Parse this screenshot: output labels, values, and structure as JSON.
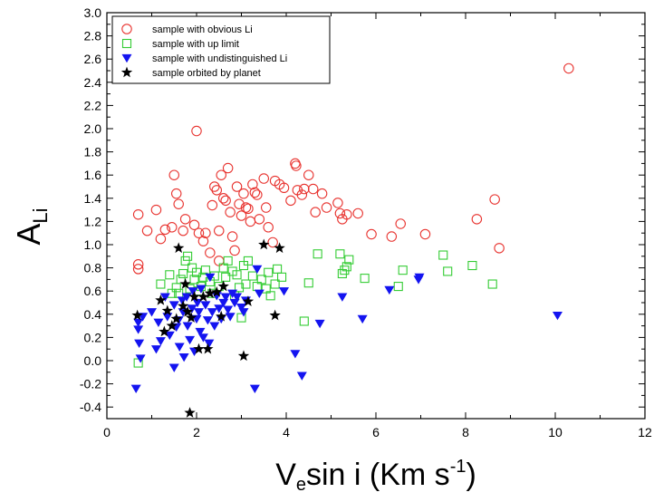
{
  "chart_data": {
    "type": "scatter",
    "xlim": [
      0,
      12
    ],
    "ylim": [
      -0.5,
      3.0
    ],
    "x_ticks": [
      0,
      2,
      4,
      6,
      8,
      10,
      12
    ],
    "y_ticks": [
      -0.4,
      -0.2,
      0.0,
      0.2,
      0.4,
      0.6,
      0.8,
      1.0,
      1.2,
      1.4,
      1.6,
      1.8,
      2.0,
      2.2,
      2.4,
      2.6,
      2.8,
      3.0
    ],
    "xlabel": {
      "main": "V",
      "sub": "e",
      "rest": "sin i (Km s",
      "sup": "-1",
      "end": ")"
    },
    "ylabel": {
      "main": "A",
      "sub": "Li"
    },
    "grid": false,
    "legend_position": "top-left",
    "series": [
      {
        "name": "sample with obvious Li",
        "marker": "circle-open",
        "color": "#e8332f",
        "points": [
          [
            0.7,
            1.26
          ],
          [
            0.7,
            0.83
          ],
          [
            0.7,
            0.79
          ],
          [
            0.9,
            1.12
          ],
          [
            1.1,
            1.3
          ],
          [
            1.2,
            1.05
          ],
          [
            1.3,
            1.13
          ],
          [
            1.45,
            1.15
          ],
          [
            1.5,
            1.6
          ],
          [
            1.55,
            1.44
          ],
          [
            1.6,
            1.35
          ],
          [
            1.7,
            1.12
          ],
          [
            1.75,
            1.22
          ],
          [
            1.95,
            1.17
          ],
          [
            2.0,
            1.98
          ],
          [
            2.05,
            1.1
          ],
          [
            2.15,
            1.03
          ],
          [
            2.2,
            1.1
          ],
          [
            2.3,
            0.93
          ],
          [
            2.35,
            1.34
          ],
          [
            2.4,
            1.5
          ],
          [
            2.45,
            1.47
          ],
          [
            2.5,
            1.12
          ],
          [
            2.5,
            0.86
          ],
          [
            2.55,
            1.6
          ],
          [
            2.6,
            1.4
          ],
          [
            2.65,
            1.38
          ],
          [
            2.7,
            1.66
          ],
          [
            2.75,
            1.28
          ],
          [
            2.8,
            1.07
          ],
          [
            2.85,
            0.95
          ],
          [
            2.9,
            1.5
          ],
          [
            2.95,
            1.35
          ],
          [
            3.0,
            1.25
          ],
          [
            3.05,
            1.44
          ],
          [
            3.1,
            1.32
          ],
          [
            3.15,
            1.31
          ],
          [
            3.2,
            1.2
          ],
          [
            3.25,
            1.52
          ],
          [
            3.3,
            1.45
          ],
          [
            3.35,
            1.43
          ],
          [
            3.4,
            1.22
          ],
          [
            3.5,
            1.57
          ],
          [
            3.55,
            1.32
          ],
          [
            3.6,
            1.15
          ],
          [
            3.7,
            1.02
          ],
          [
            3.75,
            1.55
          ],
          [
            3.85,
            1.52
          ],
          [
            3.95,
            1.49
          ],
          [
            4.1,
            1.38
          ],
          [
            4.2,
            1.7
          ],
          [
            4.22,
            1.68
          ],
          [
            4.25,
            1.47
          ],
          [
            4.35,
            1.43
          ],
          [
            4.4,
            1.48
          ],
          [
            4.5,
            1.6
          ],
          [
            4.6,
            1.48
          ],
          [
            4.65,
            1.28
          ],
          [
            4.8,
            1.44
          ],
          [
            4.9,
            1.32
          ],
          [
            5.15,
            1.36
          ],
          [
            5.2,
            1.27
          ],
          [
            5.25,
            1.22
          ],
          [
            5.35,
            1.26
          ],
          [
            5.6,
            1.27
          ],
          [
            5.9,
            1.09
          ],
          [
            6.35,
            1.07
          ],
          [
            6.55,
            1.18
          ],
          [
            7.1,
            1.09
          ],
          [
            8.25,
            1.22
          ],
          [
            8.65,
            1.39
          ],
          [
            8.75,
            0.97
          ],
          [
            10.3,
            2.52
          ]
        ]
      },
      {
        "name": "sample with up limit",
        "marker": "square-open",
        "color": "#33cc33",
        "points": [
          [
            0.7,
            -0.02
          ],
          [
            1.2,
            0.66
          ],
          [
            1.4,
            0.74
          ],
          [
            1.45,
            0.58
          ],
          [
            1.55,
            0.63
          ],
          [
            1.6,
            0.58
          ],
          [
            1.65,
            0.7
          ],
          [
            1.7,
            0.75
          ],
          [
            1.75,
            0.86
          ],
          [
            1.8,
            0.9
          ],
          [
            1.85,
            0.62
          ],
          [
            1.9,
            0.8
          ],
          [
            1.95,
            0.7
          ],
          [
            2.0,
            0.76
          ],
          [
            2.05,
            0.6
          ],
          [
            2.1,
            0.64
          ],
          [
            2.15,
            0.72
          ],
          [
            2.2,
            0.78
          ],
          [
            2.3,
            0.68
          ],
          [
            2.35,
            0.58
          ],
          [
            2.4,
            0.73
          ],
          [
            2.5,
            0.64
          ],
          [
            2.6,
            0.8
          ],
          [
            2.65,
            0.72
          ],
          [
            2.7,
            0.86
          ],
          [
            2.8,
            0.77
          ],
          [
            2.85,
            0.56
          ],
          [
            2.9,
            0.74
          ],
          [
            2.95,
            0.63
          ],
          [
            3.0,
            0.37
          ],
          [
            3.05,
            0.82
          ],
          [
            3.1,
            0.66
          ],
          [
            3.15,
            0.86
          ],
          [
            3.25,
            0.73
          ],
          [
            3.35,
            0.64
          ],
          [
            3.45,
            0.7
          ],
          [
            3.55,
            0.62
          ],
          [
            3.6,
            0.76
          ],
          [
            3.65,
            0.56
          ],
          [
            3.75,
            0.66
          ],
          [
            3.8,
            0.79
          ],
          [
            3.9,
            0.72
          ],
          [
            4.4,
            0.34
          ],
          [
            4.5,
            0.67
          ],
          [
            4.7,
            0.92
          ],
          [
            5.2,
            0.92
          ],
          [
            5.25,
            0.75
          ],
          [
            5.3,
            0.78
          ],
          [
            5.35,
            0.81
          ],
          [
            5.4,
            0.87
          ],
          [
            5.75,
            0.71
          ],
          [
            6.5,
            0.64
          ],
          [
            6.6,
            0.78
          ],
          [
            7.5,
            0.91
          ],
          [
            7.6,
            0.77
          ],
          [
            8.15,
            0.82
          ],
          [
            8.6,
            0.66
          ]
        ]
      },
      {
        "name": "sample with undistinguished Li",
        "marker": "triangle-down",
        "color": "#1414f0",
        "points": [
          [
            0.65,
            -0.24
          ],
          [
            0.7,
            0.33
          ],
          [
            0.7,
            0.27
          ],
          [
            0.72,
            0.15
          ],
          [
            0.75,
            0.02
          ],
          [
            0.8,
            0.38
          ],
          [
            1.0,
            0.42
          ],
          [
            1.1,
            0.1
          ],
          [
            1.15,
            0.33
          ],
          [
            1.2,
            0.17
          ],
          [
            1.3,
            0.55
          ],
          [
            1.35,
            0.38
          ],
          [
            1.4,
            0.22
          ],
          [
            1.5,
            0.48
          ],
          [
            1.55,
            0.29
          ],
          [
            1.5,
            -0.06
          ],
          [
            1.6,
            0.35
          ],
          [
            1.62,
            0.12
          ],
          [
            1.68,
            0.52
          ],
          [
            1.7,
            0.42
          ],
          [
            1.72,
            0.03
          ],
          [
            1.78,
            0.55
          ],
          [
            1.8,
            0.3
          ],
          [
            1.85,
            0.18
          ],
          [
            1.9,
            0.45
          ],
          [
            1.92,
            0.6
          ],
          [
            1.95,
            0.08
          ],
          [
            2.0,
            0.36
          ],
          [
            2.02,
            0.5
          ],
          [
            2.05,
            0.42
          ],
          [
            2.08,
            0.25
          ],
          [
            2.1,
            0.62
          ],
          [
            2.15,
            0.2
          ],
          [
            2.2,
            0.48
          ],
          [
            2.25,
            0.35
          ],
          [
            2.28,
            0.15
          ],
          [
            2.3,
            0.72
          ],
          [
            2.35,
            0.42
          ],
          [
            2.4,
            0.3
          ],
          [
            2.45,
            0.56
          ],
          [
            2.5,
            0.45
          ],
          [
            2.55,
            0.36
          ],
          [
            2.6,
            0.5
          ],
          [
            2.65,
            0.55
          ],
          [
            2.7,
            0.44
          ],
          [
            2.75,
            0.38
          ],
          [
            2.8,
            0.58
          ],
          [
            2.85,
            0.5
          ],
          [
            2.9,
            0.55
          ],
          [
            3.0,
            0.46
          ],
          [
            3.05,
            0.42
          ],
          [
            3.1,
            0.52
          ],
          [
            3.3,
            -0.24
          ],
          [
            3.35,
            0.79
          ],
          [
            3.4,
            0.58
          ],
          [
            3.95,
            0.6
          ],
          [
            4.2,
            0.06
          ],
          [
            4.35,
            -0.13
          ],
          [
            4.75,
            0.32
          ],
          [
            5.25,
            0.55
          ],
          [
            5.7,
            0.36
          ],
          [
            6.3,
            0.61
          ],
          [
            6.95,
            0.7
          ],
          [
            6.97,
            0.72
          ],
          [
            10.05,
            0.39
          ]
        ]
      },
      {
        "name": "sample orbited by planet",
        "marker": "star",
        "color": "#000000",
        "points": [
          [
            0.68,
            0.39
          ],
          [
            1.2,
            0.52
          ],
          [
            1.28,
            0.25
          ],
          [
            1.35,
            0.43
          ],
          [
            1.45,
            0.3
          ],
          [
            1.55,
            0.36
          ],
          [
            1.6,
            0.97
          ],
          [
            1.7,
            0.47
          ],
          [
            1.75,
            0.66
          ],
          [
            1.8,
            0.42
          ],
          [
            1.85,
            -0.45
          ],
          [
            1.88,
            0.37
          ],
          [
            1.95,
            0.55
          ],
          [
            2.05,
            0.1
          ],
          [
            2.15,
            0.55
          ],
          [
            2.25,
            0.1
          ],
          [
            2.3,
            0.58
          ],
          [
            2.45,
            0.59
          ],
          [
            2.55,
            0.38
          ],
          [
            2.6,
            0.64
          ],
          [
            3.05,
            0.04
          ],
          [
            3.15,
            0.51
          ],
          [
            3.5,
            1.0
          ],
          [
            3.75,
            0.39
          ],
          [
            3.85,
            0.97
          ]
        ]
      }
    ]
  }
}
